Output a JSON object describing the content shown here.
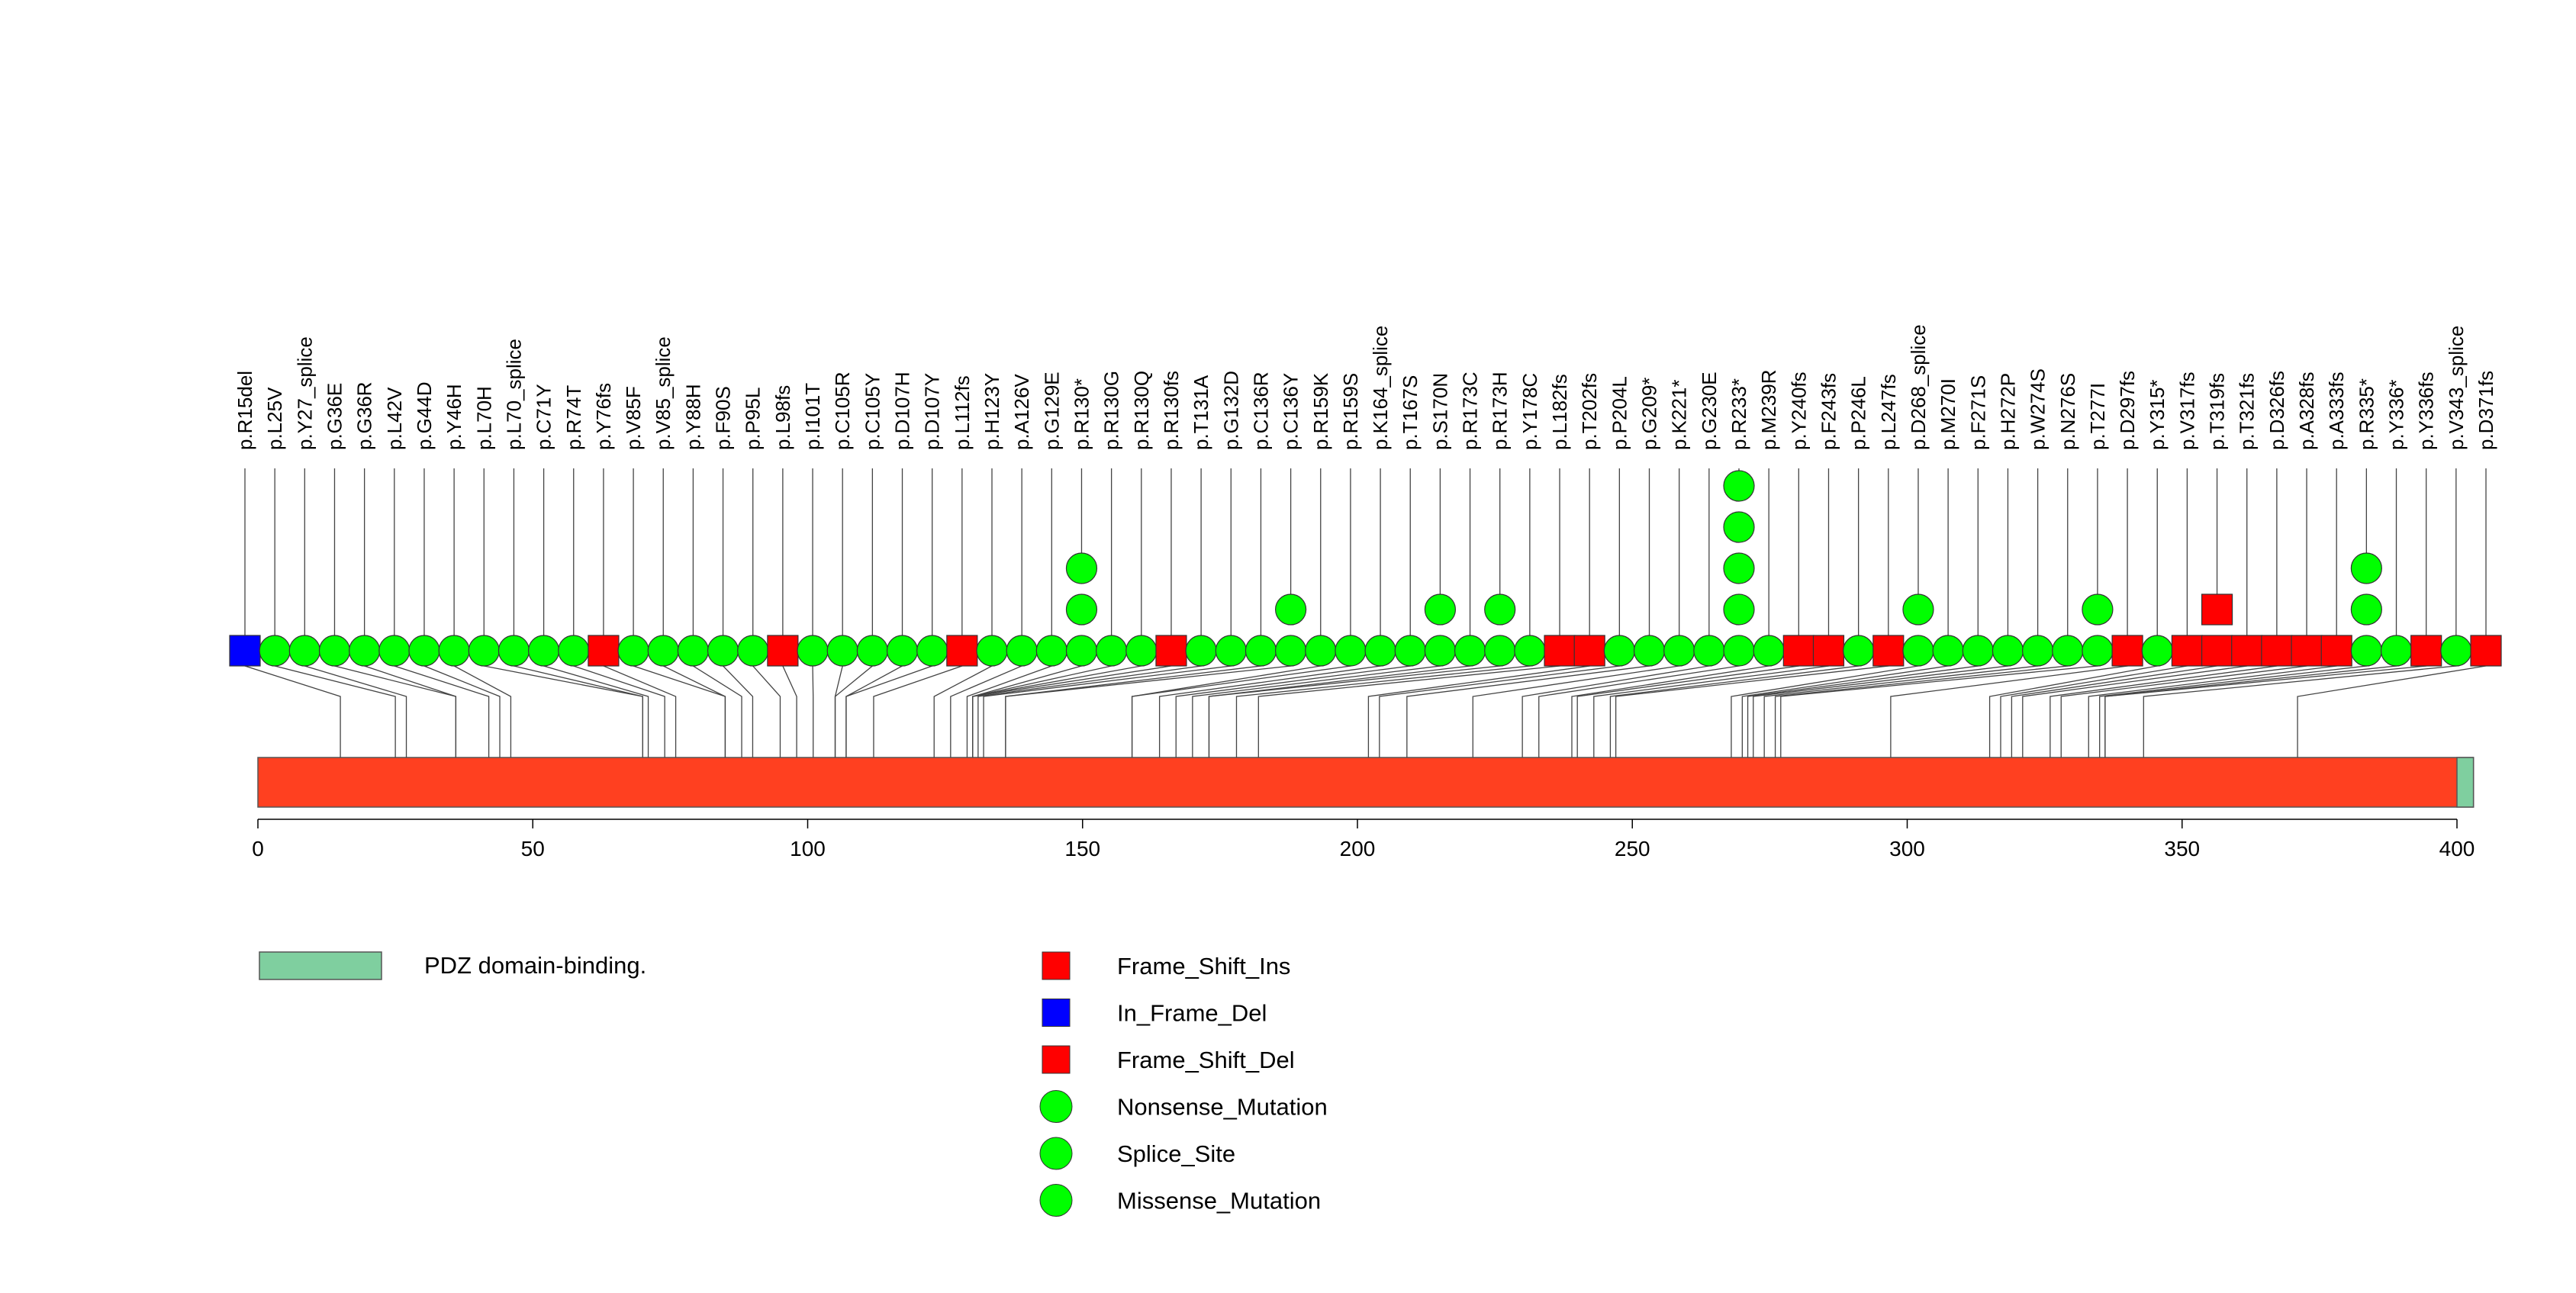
{
  "chart_data": {
    "type": "lollipop",
    "xlim": [
      0,
      400
    ],
    "axis_ticks": [
      0,
      50,
      100,
      150,
      200,
      250,
      300,
      350,
      400
    ],
    "protein_length": 403,
    "domains": [
      {
        "name": "PDZ domain-binding.",
        "start": 400,
        "end": 403,
        "color": "#7fcf9f"
      }
    ],
    "backbone_color": "#ff4020",
    "mutation_types": [
      {
        "name": "Frame_Shift_Ins",
        "shape": "square",
        "color": "#ff0000"
      },
      {
        "name": "In_Frame_Del",
        "shape": "square",
        "color": "#0000ff"
      },
      {
        "name": "Frame_Shift_Del",
        "shape": "square",
        "color": "#ff0000"
      },
      {
        "name": "Nonsense_Mutation",
        "shape": "circle",
        "color": "#00ff00"
      },
      {
        "name": "Splice_Site",
        "shape": "circle",
        "color": "#00ff00"
      },
      {
        "name": "Missense_Mutation",
        "shape": "circle",
        "color": "#00ff00"
      }
    ],
    "mutations": [
      {
        "label": "p.R15del",
        "pos": 15,
        "count": 1,
        "type": "In_Frame_Del"
      },
      {
        "label": "p.L25V",
        "pos": 25,
        "count": 1,
        "type": "Missense_Mutation"
      },
      {
        "label": "p.Y27_splice",
        "pos": 27,
        "count": 1,
        "type": "Splice_Site"
      },
      {
        "label": "p.G36E",
        "pos": 36,
        "count": 1,
        "type": "Missense_Mutation"
      },
      {
        "label": "p.G36R",
        "pos": 36,
        "count": 1,
        "type": "Missense_Mutation"
      },
      {
        "label": "p.L42V",
        "pos": 42,
        "count": 1,
        "type": "Missense_Mutation"
      },
      {
        "label": "p.G44D",
        "pos": 44,
        "count": 1,
        "type": "Missense_Mutation"
      },
      {
        "label": "p.Y46H",
        "pos": 46,
        "count": 1,
        "type": "Missense_Mutation"
      },
      {
        "label": "p.L70H",
        "pos": 70,
        "count": 1,
        "type": "Missense_Mutation"
      },
      {
        "label": "p.L70_splice",
        "pos": 70,
        "count": 1,
        "type": "Splice_Site"
      },
      {
        "label": "p.C71Y",
        "pos": 71,
        "count": 1,
        "type": "Missense_Mutation"
      },
      {
        "label": "p.R74T",
        "pos": 74,
        "count": 1,
        "type": "Missense_Mutation"
      },
      {
        "label": "p.Y76fs",
        "pos": 76,
        "count": 1,
        "type": "Frame_Shift_Del"
      },
      {
        "label": "p.V85F",
        "pos": 85,
        "count": 1,
        "type": "Missense_Mutation"
      },
      {
        "label": "p.V85_splice",
        "pos": 85,
        "count": 1,
        "type": "Splice_Site"
      },
      {
        "label": "p.Y88H",
        "pos": 88,
        "count": 1,
        "type": "Missense_Mutation"
      },
      {
        "label": "p.F90S",
        "pos": 90,
        "count": 1,
        "type": "Missense_Mutation"
      },
      {
        "label": "p.P95L",
        "pos": 95,
        "count": 1,
        "type": "Missense_Mutation"
      },
      {
        "label": "p.L98fs",
        "pos": 98,
        "count": 1,
        "type": "Frame_Shift_Del"
      },
      {
        "label": "p.I101T",
        "pos": 101,
        "count": 1,
        "type": "Missense_Mutation"
      },
      {
        "label": "p.C105R",
        "pos": 105,
        "count": 1,
        "type": "Missense_Mutation"
      },
      {
        "label": "p.C105Y",
        "pos": 105,
        "count": 1,
        "type": "Missense_Mutation"
      },
      {
        "label": "p.D107H",
        "pos": 107,
        "count": 1,
        "type": "Missense_Mutation"
      },
      {
        "label": "p.D107Y",
        "pos": 107,
        "count": 1,
        "type": "Missense_Mutation"
      },
      {
        "label": "p.L112fs",
        "pos": 112,
        "count": 1,
        "type": "Frame_Shift_Del"
      },
      {
        "label": "p.H123Y",
        "pos": 123,
        "count": 1,
        "type": "Missense_Mutation"
      },
      {
        "label": "p.A126V",
        "pos": 126,
        "count": 1,
        "type": "Missense_Mutation"
      },
      {
        "label": "p.G129E",
        "pos": 129,
        "count": 1,
        "type": "Missense_Mutation"
      },
      {
        "label": "p.R130*",
        "pos": 130,
        "count": 3,
        "type": "Nonsense_Mutation"
      },
      {
        "label": "p.R130G",
        "pos": 130,
        "count": 1,
        "type": "Missense_Mutation"
      },
      {
        "label": "p.R130Q",
        "pos": 130,
        "count": 1,
        "type": "Missense_Mutation"
      },
      {
        "label": "p.R130fs",
        "pos": 130,
        "count": 1,
        "type": "Frame_Shift_Del"
      },
      {
        "label": "p.T131A",
        "pos": 131,
        "count": 1,
        "type": "Missense_Mutation"
      },
      {
        "label": "p.G132D",
        "pos": 132,
        "count": 1,
        "type": "Missense_Mutation"
      },
      {
        "label": "p.C136R",
        "pos": 136,
        "count": 1,
        "type": "Missense_Mutation"
      },
      {
        "label": "p.C136Y",
        "pos": 136,
        "count": 2,
        "type": "Missense_Mutation"
      },
      {
        "label": "p.R159K",
        "pos": 159,
        "count": 1,
        "type": "Missense_Mutation"
      },
      {
        "label": "p.R159S",
        "pos": 159,
        "count": 1,
        "type": "Missense_Mutation"
      },
      {
        "label": "p.K164_splice",
        "pos": 164,
        "count": 1,
        "type": "Splice_Site"
      },
      {
        "label": "p.T167S",
        "pos": 167,
        "count": 1,
        "type": "Missense_Mutation"
      },
      {
        "label": "p.S170N",
        "pos": 170,
        "count": 2,
        "type": "Missense_Mutation"
      },
      {
        "label": "p.R173C",
        "pos": 173,
        "count": 1,
        "type": "Missense_Mutation"
      },
      {
        "label": "p.R173H",
        "pos": 173,
        "count": 2,
        "type": "Missense_Mutation"
      },
      {
        "label": "p.Y178C",
        "pos": 178,
        "count": 1,
        "type": "Missense_Mutation"
      },
      {
        "label": "p.L182fs",
        "pos": 182,
        "count": 1,
        "type": "Frame_Shift_Del"
      },
      {
        "label": "p.T202fs",
        "pos": 202,
        "count": 1,
        "type": "Frame_Shift_Del"
      },
      {
        "label": "p.P204L",
        "pos": 204,
        "count": 1,
        "type": "Missense_Mutation"
      },
      {
        "label": "p.G209*",
        "pos": 209,
        "count": 1,
        "type": "Nonsense_Mutation"
      },
      {
        "label": "p.K221*",
        "pos": 221,
        "count": 1,
        "type": "Nonsense_Mutation"
      },
      {
        "label": "p.G230E",
        "pos": 230,
        "count": 1,
        "type": "Missense_Mutation"
      },
      {
        "label": "p.R233*",
        "pos": 233,
        "count": 5,
        "type": "Nonsense_Mutation"
      },
      {
        "label": "p.M239R",
        "pos": 239,
        "count": 1,
        "type": "Missense_Mutation"
      },
      {
        "label": "p.Y240fs",
        "pos": 240,
        "count": 1,
        "type": "Frame_Shift_Del"
      },
      {
        "label": "p.F243fs",
        "pos": 243,
        "count": 1,
        "type": "Frame_Shift_Del"
      },
      {
        "label": "p.P246L",
        "pos": 246,
        "count": 1,
        "type": "Missense_Mutation"
      },
      {
        "label": "p.L247fs",
        "pos": 247,
        "count": 1,
        "type": "Frame_Shift_Del"
      },
      {
        "label": "p.D268_splice",
        "pos": 268,
        "count": 2,
        "type": "Splice_Site"
      },
      {
        "label": "p.M270I",
        "pos": 270,
        "count": 1,
        "type": "Missense_Mutation"
      },
      {
        "label": "p.F271S",
        "pos": 271,
        "count": 1,
        "type": "Missense_Mutation"
      },
      {
        "label": "p.H272P",
        "pos": 272,
        "count": 1,
        "type": "Missense_Mutation"
      },
      {
        "label": "p.W274S",
        "pos": 274,
        "count": 1,
        "type": "Missense_Mutation"
      },
      {
        "label": "p.N276S",
        "pos": 276,
        "count": 1,
        "type": "Missense_Mutation"
      },
      {
        "label": "p.T277I",
        "pos": 277,
        "count": 2,
        "type": "Missense_Mutation"
      },
      {
        "label": "p.D297fs",
        "pos": 297,
        "count": 1,
        "type": "Frame_Shift_Del"
      },
      {
        "label": "p.Y315*",
        "pos": 315,
        "count": 1,
        "type": "Nonsense_Mutation"
      },
      {
        "label": "p.V317fs",
        "pos": 317,
        "count": 1,
        "type": "Frame_Shift_Del"
      },
      {
        "label": "p.T319fs",
        "pos": 319,
        "count": 2,
        "type": "Frame_Shift_Ins"
      },
      {
        "label": "p.T321fs",
        "pos": 321,
        "count": 1,
        "type": "Frame_Shift_Del"
      },
      {
        "label": "p.D326fs",
        "pos": 326,
        "count": 1,
        "type": "Frame_Shift_Del"
      },
      {
        "label": "p.A328fs",
        "pos": 328,
        "count": 1,
        "type": "Frame_Shift_Del"
      },
      {
        "label": "p.A333fs",
        "pos": 333,
        "count": 1,
        "type": "Frame_Shift_Del"
      },
      {
        "label": "p.R335*",
        "pos": 335,
        "count": 3,
        "type": "Nonsense_Mutation"
      },
      {
        "label": "p.Y336*",
        "pos": 336,
        "count": 1,
        "type": "Nonsense_Mutation"
      },
      {
        "label": "p.Y336fs",
        "pos": 336,
        "count": 1,
        "type": "Frame_Shift_Del"
      },
      {
        "label": "p.V343_splice",
        "pos": 343,
        "count": 1,
        "type": "Splice_Site"
      },
      {
        "label": "p.D371fs",
        "pos": 371,
        "count": 1,
        "type": "Frame_Shift_Del"
      }
    ]
  }
}
